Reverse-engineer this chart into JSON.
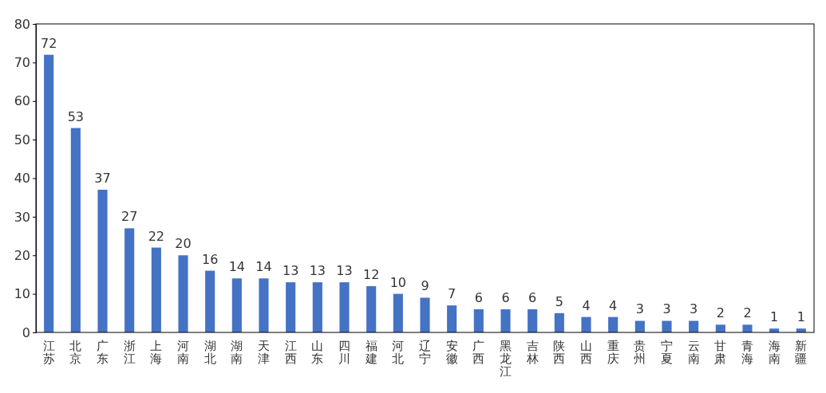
{
  "chart_data": {
    "type": "bar",
    "categories": [
      "江苏",
      "北京",
      "广东",
      "浙江",
      "上海",
      "河南",
      "湖北",
      "湖南",
      "天津",
      "江西",
      "山东",
      "四川",
      "福建",
      "河北",
      "辽宁",
      "安徽",
      "广西",
      "黑龙江",
      "吉林",
      "陕西",
      "山西",
      "重庆",
      "贵州",
      "宁夏",
      "云南",
      "甘肃",
      "青海",
      "海南",
      "新疆"
    ],
    "values": [
      72,
      53,
      37,
      27,
      22,
      20,
      16,
      14,
      14,
      13,
      13,
      13,
      12,
      10,
      9,
      7,
      6,
      6,
      6,
      5,
      4,
      4,
      3,
      3,
      3,
      2,
      2,
      1,
      1
    ],
    "color": "#4472c4",
    "ylim": [
      0,
      80
    ],
    "yticks": [
      0,
      10,
      20,
      30,
      40,
      50,
      60,
      70,
      80
    ],
    "data_labels": true,
    "grid": false
  }
}
